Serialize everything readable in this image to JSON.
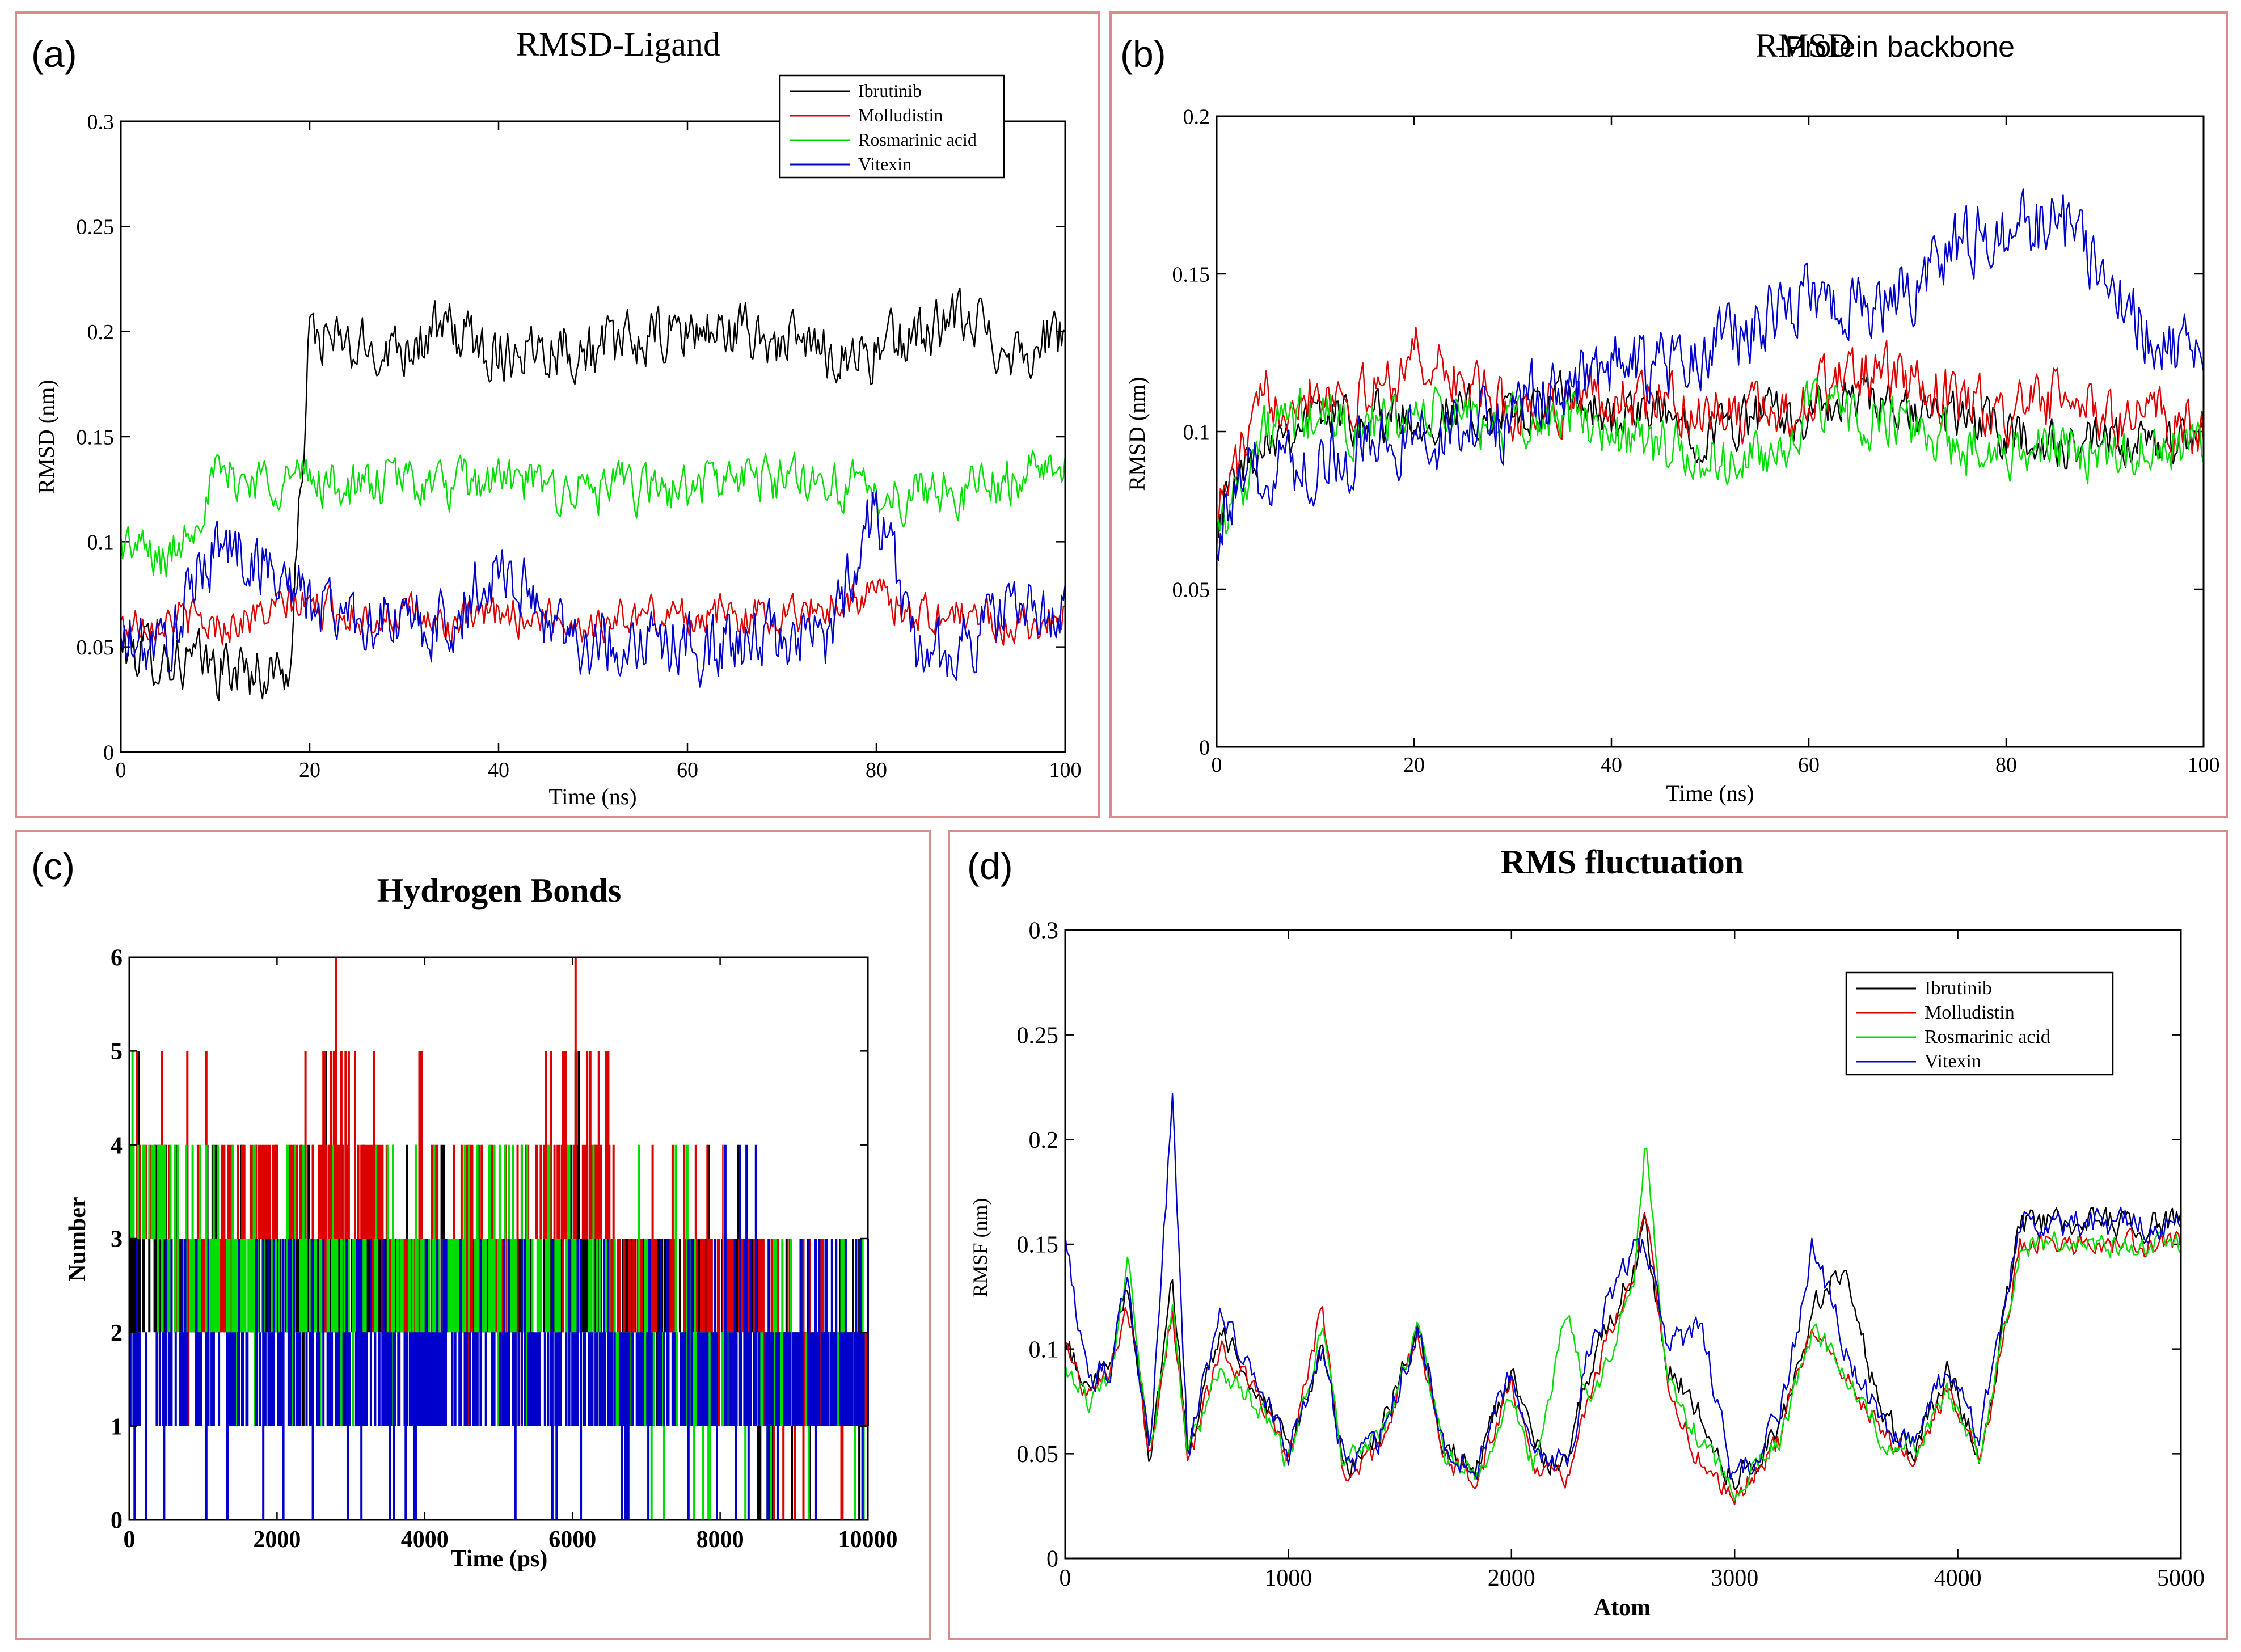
{
  "figure": {
    "colors": {
      "Ibrutinib": "#000000",
      "Molludistin": "#dd0000",
      "Rosmarinic acid": "#00dd00",
      "Vitexin": "#0000cc",
      "panel_border": "#d98c8c"
    }
  },
  "chart_data": [
    {
      "id": "a",
      "panel_label": "(a)",
      "type": "line",
      "title": "RMSD-Ligand",
      "xlabel": "Time (ns)",
      "ylabel": "RMSD (nm)",
      "xlim": [
        0,
        100
      ],
      "ylim": [
        0,
        0.3
      ],
      "xticks": [
        0,
        20,
        40,
        60,
        80,
        100
      ],
      "xtick_labels": [
        "0",
        "20",
        "40",
        "60",
        "80",
        "100"
      ],
      "yticks": [
        0,
        0.05,
        0.1,
        0.15,
        0.2,
        0.25,
        0.3
      ],
      "ytick_labels": [
        "0",
        "0.05",
        "0.1",
        "0.15",
        "0.2",
        "0.25",
        "0.3"
      ],
      "legend": [
        "Ibrutinib",
        "Molludistin",
        "Rosmarinic acid",
        "Vitexin"
      ],
      "legend_position": "top-right",
      "x": [
        0,
        5,
        10,
        15,
        18,
        20,
        25,
        30,
        35,
        40,
        45,
        50,
        55,
        60,
        65,
        70,
        75,
        80,
        85,
        90,
        95,
        100
      ],
      "series": [
        {
          "name": "Ibrutinib",
          "values": [
            0.05,
            0.045,
            0.04,
            0.038,
            0.04,
            0.2,
            0.19,
            0.195,
            0.2,
            0.19,
            0.195,
            0.19,
            0.195,
            0.2,
            0.2,
            0.195,
            0.19,
            0.19,
            0.2,
            0.205,
            0.19,
            0.2
          ],
          "amp": 0.012
        },
        {
          "name": "Molludistin",
          "values": [
            0.06,
            0.065,
            0.06,
            0.065,
            0.07,
            0.07,
            0.065,
            0.065,
            0.06,
            0.065,
            0.065,
            0.06,
            0.065,
            0.065,
            0.065,
            0.065,
            0.07,
            0.075,
            0.065,
            0.065,
            0.06,
            0.065
          ],
          "amp": 0.008
        },
        {
          "name": "Rosmarinic acid",
          "values": [
            0.1,
            0.09,
            0.13,
            0.13,
            0.13,
            0.13,
            0.125,
            0.13,
            0.125,
            0.13,
            0.125,
            0.125,
            0.125,
            0.125,
            0.13,
            0.13,
            0.13,
            0.12,
            0.125,
            0.125,
            0.13,
            0.14
          ],
          "amp": 0.01
        },
        {
          "name": "Vitexin",
          "values": [
            0.05,
            0.05,
            0.1,
            0.09,
            0.08,
            0.07,
            0.065,
            0.06,
            0.06,
            0.09,
            0.065,
            0.05,
            0.055,
            0.05,
            0.05,
            0.055,
            0.055,
            0.12,
            0.04,
            0.055,
            0.07,
            0.065
          ],
          "amp": 0.014
        }
      ]
    },
    {
      "id": "b",
      "panel_label": "(b)",
      "type": "line",
      "title_main": "RMSD",
      "title_suffix": "-Protein backbone",
      "xlabel": "Time (ns)",
      "ylabel": "RMSD (nm)",
      "xlim": [
        0,
        100
      ],
      "ylim": [
        0,
        0.2
      ],
      "xticks": [
        0,
        20,
        40,
        60,
        80,
        100
      ],
      "xtick_labels": [
        "0",
        "20",
        "40",
        "60",
        "80",
        "100"
      ],
      "yticks": [
        0,
        0.05,
        0.1,
        0.15,
        0.2
      ],
      "ytick_labels": [
        "0",
        "0.05",
        "0.1",
        "0.15",
        "0.2"
      ],
      "x": [
        0,
        5,
        10,
        15,
        20,
        25,
        30,
        35,
        40,
        45,
        50,
        55,
        60,
        65,
        70,
        75,
        80,
        85,
        90,
        95,
        100
      ],
      "series": [
        {
          "name": "Ibrutinib",
          "values": [
            0.075,
            0.1,
            0.105,
            0.105,
            0.105,
            0.105,
            0.105,
            0.11,
            0.105,
            0.105,
            0.1,
            0.105,
            0.105,
            0.11,
            0.105,
            0.105,
            0.1,
            0.095,
            0.095,
            0.095,
            0.1
          ],
          "amp": 0.007
        },
        {
          "name": "Molludistin",
          "values": [
            0.075,
            0.11,
            0.115,
            0.11,
            0.125,
            0.115,
            0.105,
            0.11,
            0.11,
            0.11,
            0.105,
            0.105,
            0.11,
            0.12,
            0.115,
            0.11,
            0.105,
            0.11,
            0.105,
            0.105,
            0.1
          ],
          "amp": 0.008
        },
        {
          "name": "Rosmarinic acid",
          "values": [
            0.07,
            0.1,
            0.105,
            0.1,
            0.105,
            0.105,
            0.1,
            0.105,
            0.1,
            0.095,
            0.09,
            0.09,
            0.105,
            0.105,
            0.1,
            0.095,
            0.095,
            0.095,
            0.095,
            0.095,
            0.095
          ],
          "amp": 0.008
        },
        {
          "name": "Vitexin",
          "values": [
            0.07,
            0.09,
            0.09,
            0.095,
            0.1,
            0.1,
            0.105,
            0.115,
            0.12,
            0.12,
            0.125,
            0.135,
            0.145,
            0.14,
            0.145,
            0.16,
            0.165,
            0.165,
            0.155,
            0.13,
            0.12
          ],
          "amp": 0.01
        }
      ]
    },
    {
      "id": "c",
      "panel_label": "(c)",
      "type": "bar",
      "title": "Hydrogen Bonds",
      "xlabel": "Time (ps)",
      "ylabel": "Number",
      "xlim": [
        0,
        10000
      ],
      "ylim": [
        0,
        6
      ],
      "xticks": [
        0,
        2000,
        4000,
        6000,
        8000,
        10000
      ],
      "xtick_labels": [
        "0",
        "2000",
        "4000",
        "6000",
        "8000",
        "10000"
      ],
      "yticks": [
        0,
        1,
        2,
        3,
        4,
        5,
        6
      ],
      "ytick_labels": [
        "0",
        "1",
        "2",
        "3",
        "4",
        "5",
        "6"
      ],
      "x": [
        0,
        1000,
        2000,
        3000,
        4000,
        5000,
        6000,
        7000,
        8000,
        9000,
        10000
      ],
      "series": [
        {
          "name": "Ibrutinib",
          "values": [
            3,
            3,
            3,
            3,
            3,
            3,
            3,
            3,
            3,
            2,
            2
          ],
          "max": [
            5,
            4,
            4,
            5,
            4,
            4,
            5,
            4,
            4,
            3,
            3
          ]
        },
        {
          "name": "Molludistin",
          "values": [
            4,
            3,
            4,
            4,
            3,
            3,
            4,
            3,
            3,
            2,
            2
          ],
          "max": [
            5,
            5,
            5,
            6,
            5,
            4,
            6,
            4,
            4,
            3,
            3
          ]
        },
        {
          "name": "Rosmarinic acid",
          "values": [
            4,
            3,
            3,
            3,
            3,
            3,
            3,
            2,
            2,
            2,
            2
          ],
          "max": [
            5,
            4,
            4,
            4,
            4,
            4,
            4,
            4,
            4,
            3,
            3
          ]
        },
        {
          "name": "Vitexin",
          "values": [
            2,
            2,
            2,
            2,
            2,
            2,
            2,
            2,
            2,
            2,
            2
          ],
          "max": [
            3,
            3,
            3,
            3,
            3,
            3,
            3,
            3,
            4,
            4,
            3
          ]
        }
      ]
    },
    {
      "id": "d",
      "panel_label": "(d)",
      "type": "line",
      "title": "RMS fluctuation",
      "xlabel": "Atom",
      "ylabel": "RMSF (nm)",
      "xlim": [
        0,
        5000
      ],
      "ylim": [
        0,
        0.3
      ],
      "xticks": [
        0,
        1000,
        2000,
        3000,
        4000,
        5000
      ],
      "xtick_labels": [
        "0",
        "1000",
        "2000",
        "3000",
        "4000",
        "5000"
      ],
      "yticks": [
        0,
        0.05,
        0.1,
        0.15,
        0.2,
        0.25,
        0.3
      ],
      "ytick_labels": [
        "0",
        "0.05",
        "0.1",
        "0.15",
        "0.2",
        "0.25",
        "0.3"
      ],
      "legend": [
        "Ibrutinib",
        "Molludistin",
        "Rosmarinic acid",
        "Vitexin"
      ],
      "legend_position": "top-right",
      "x": [
        0,
        100,
        200,
        280,
        380,
        480,
        550,
        700,
        850,
        1000,
        1150,
        1250,
        1400,
        1580,
        1700,
        1850,
        2000,
        2100,
        2250,
        2350,
        2550,
        2600,
        2700,
        2850,
        3000,
        3200,
        3350,
        3500,
        3650,
        3800,
        3950,
        4100,
        4280
      ],
      "series": [
        {
          "name": "Ibrutinib",
          "values": [
            0.1,
            0.085,
            0.09,
            0.13,
            0.05,
            0.13,
            0.05,
            0.11,
            0.08,
            0.05,
            0.1,
            0.045,
            0.055,
            0.11,
            0.05,
            0.045,
            0.09,
            0.05,
            0.045,
            0.09,
            0.14,
            0.16,
            0.09,
            0.07,
            0.035,
            0.06,
            0.12,
            0.14,
            0.07,
            0.05,
            0.09,
            0.05,
            0.16
          ],
          "amp": 0.006
        },
        {
          "name": "Molludistin",
          "values": [
            0.1,
            0.08,
            0.09,
            0.12,
            0.05,
            0.12,
            0.045,
            0.1,
            0.08,
            0.045,
            0.12,
            0.04,
            0.05,
            0.11,
            0.045,
            0.04,
            0.085,
            0.045,
            0.04,
            0.08,
            0.14,
            0.17,
            0.08,
            0.045,
            0.03,
            0.055,
            0.11,
            0.09,
            0.06,
            0.05,
            0.08,
            0.045,
            0.15
          ],
          "amp": 0.005
        },
        {
          "name": "Rosmarinic acid",
          "values": [
            0.09,
            0.075,
            0.085,
            0.14,
            0.05,
            0.12,
            0.05,
            0.09,
            0.075,
            0.045,
            0.11,
            0.045,
            0.055,
            0.11,
            0.05,
            0.04,
            0.08,
            0.045,
            0.12,
            0.07,
            0.13,
            0.2,
            0.085,
            0.055,
            0.035,
            0.055,
            0.11,
            0.09,
            0.06,
            0.05,
            0.08,
            0.05,
            0.15
          ],
          "amp": 0.005
        },
        {
          "name": "Vitexin",
          "values": [
            0.15,
            0.085,
            0.09,
            0.13,
            0.05,
            0.22,
            0.05,
            0.12,
            0.085,
            0.05,
            0.1,
            0.045,
            0.055,
            0.11,
            0.055,
            0.045,
            0.09,
            0.05,
            0.045,
            0.1,
            0.15,
            0.15,
            0.1,
            0.11,
            0.035,
            0.065,
            0.15,
            0.1,
            0.065,
            0.055,
            0.09,
            0.06,
            0.16
          ],
          "amp": 0.006
        }
      ]
    }
  ]
}
